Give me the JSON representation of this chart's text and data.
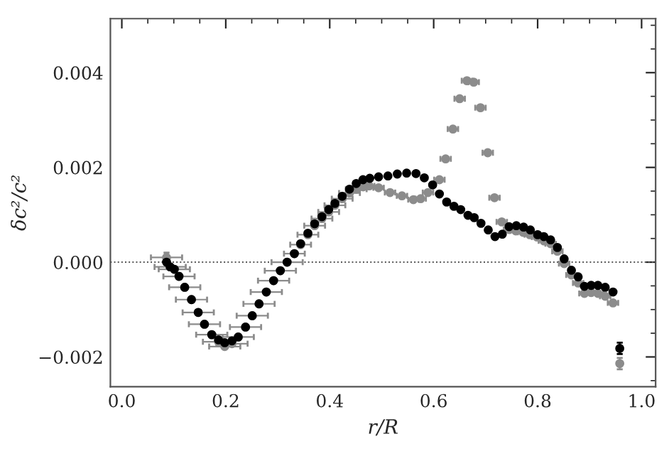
{
  "chart_data": {
    "type": "scatter",
    "xlabel": "r/R",
    "ylabel": "δc²/c²",
    "xlim": [
      -0.022,
      1.027
    ],
    "ylim": [
      -0.00263,
      0.00514
    ],
    "xticks": [
      {
        "value": 0.0,
        "label": "0.0"
      },
      {
        "value": 0.2,
        "label": "0.2"
      },
      {
        "value": 0.4,
        "label": "0.4"
      },
      {
        "value": 0.6,
        "label": "0.6"
      },
      {
        "value": 0.8,
        "label": "0.8"
      },
      {
        "value": 1.0,
        "label": "1.0"
      }
    ],
    "yticks": [
      {
        "value": -0.002,
        "label": "−0.002"
      },
      {
        "value": 0.0,
        "label": "0.000"
      },
      {
        "value": 0.002,
        "label": "0.002"
      },
      {
        "value": 0.004,
        "label": "0.004"
      }
    ],
    "marker": "circle",
    "grid": false,
    "legend": false,
    "ref_lines": [
      {
        "axis": "y",
        "value": 0.0,
        "color": "#555555",
        "line_style": "dotted"
      }
    ],
    "series": [
      {
        "color": "#8c8c8c",
        "x": [
          0.086,
          0.093,
          0.101,
          0.11,
          0.121,
          0.134,
          0.147,
          0.159,
          0.173,
          0.186,
          0.198,
          0.212,
          0.224,
          0.238,
          0.251,
          0.264,
          0.278,
          0.292,
          0.305,
          0.318,
          0.332,
          0.344,
          0.358,
          0.371,
          0.385,
          0.398,
          0.41,
          0.424,
          0.438,
          0.451,
          0.464,
          0.476,
          0.494,
          0.516,
          0.539,
          0.561,
          0.575,
          0.589,
          0.611,
          0.623,
          0.637,
          0.65,
          0.664,
          0.677,
          0.69,
          0.704,
          0.717,
          0.731,
          0.745,
          0.758,
          0.772,
          0.785,
          0.799,
          0.812,
          0.825,
          0.838,
          0.851,
          0.865,
          0.878,
          0.89,
          0.903,
          0.916,
          0.93,
          0.945,
          0.958
        ],
        "values": [
          0.0001,
          -0.0001,
          -0.00015,
          -0.0003,
          -0.00053,
          -0.00079,
          -0.00106,
          -0.00131,
          -0.00153,
          -0.00168,
          -0.00178,
          -0.00172,
          -0.00158,
          -0.00137,
          -0.00113,
          -0.00088,
          -0.00063,
          -0.00039,
          -0.00018,
          0.0,
          0.00018,
          0.00037,
          0.00058,
          0.00077,
          0.00092,
          0.00106,
          0.0012,
          0.00134,
          0.00146,
          0.00154,
          0.00159,
          0.00161,
          0.00157,
          0.00147,
          0.0014,
          0.00132,
          0.00134,
          0.00147,
          0.00174,
          0.00218,
          0.00281,
          0.00345,
          0.00383,
          0.0038,
          0.00326,
          0.00231,
          0.00136,
          0.00085,
          0.00069,
          0.00066,
          0.00063,
          0.00058,
          0.00053,
          0.00045,
          0.00039,
          0.00023,
          -3e-05,
          -0.00027,
          -0.00044,
          -0.00066,
          -0.00064,
          -0.00066,
          -0.00072,
          -0.00086,
          -0.00214
        ],
        "xerrors": [
          0.03,
          0.03,
          0.03,
          0.03,
          0.03,
          0.03,
          0.03,
          0.03,
          0.03,
          0.03,
          0.03,
          0.03,
          0.03,
          0.03,
          0.03,
          0.03,
          0.03,
          0.03,
          0.03,
          0.03,
          0.02,
          0.02,
          0.02,
          0.02,
          0.02,
          0.02,
          0.02,
          0.02,
          0.02,
          0.02,
          0.01,
          0.01,
          0.01,
          0.01,
          0.01,
          0.01,
          0.01,
          0.01,
          0.01,
          0.01,
          0.01,
          0.01,
          0.01,
          0.01,
          0.01,
          0.01,
          0.01,
          0.01,
          0.01,
          0.01,
          0.01,
          0.01,
          0.01,
          0.01,
          0.01,
          0.01,
          0.01,
          0.01,
          0.01,
          0.01,
          0.01,
          0.01,
          0.01,
          0.01,
          0.003
        ],
        "errors": [
          0.0001,
          null,
          null,
          null,
          null,
          null,
          null,
          null,
          null,
          null,
          null,
          null,
          null,
          null,
          null,
          null,
          null,
          null,
          null,
          null,
          null,
          null,
          null,
          null,
          null,
          null,
          null,
          null,
          null,
          null,
          null,
          null,
          null,
          null,
          null,
          null,
          null,
          null,
          null,
          null,
          null,
          null,
          null,
          null,
          null,
          null,
          null,
          null,
          null,
          null,
          null,
          null,
          null,
          null,
          null,
          null,
          null,
          null,
          null,
          null,
          null,
          null,
          null,
          null,
          0.00012
        ]
      },
      {
        "color": "#000000",
        "x": [
          0.086,
          0.093,
          0.101,
          0.11,
          0.121,
          0.134,
          0.147,
          0.159,
          0.173,
          0.186,
          0.198,
          0.212,
          0.224,
          0.238,
          0.251,
          0.264,
          0.278,
          0.292,
          0.305,
          0.318,
          0.332,
          0.344,
          0.358,
          0.371,
          0.385,
          0.398,
          0.41,
          0.424,
          0.438,
          0.451,
          0.464,
          0.477,
          0.494,
          0.512,
          0.53,
          0.548,
          0.566,
          0.582,
          0.598,
          0.611,
          0.625,
          0.639,
          0.652,
          0.666,
          0.678,
          0.691,
          0.705,
          0.718,
          0.732,
          0.745,
          0.759,
          0.773,
          0.786,
          0.8,
          0.812,
          0.825,
          0.838,
          0.851,
          0.865,
          0.878,
          0.89,
          0.903,
          0.916,
          0.93,
          0.945,
          0.958
        ],
        "values": [
          0.0,
          -0.0001,
          -0.00015,
          -0.0003,
          -0.00053,
          -0.00079,
          -0.00106,
          -0.00131,
          -0.00153,
          -0.00164,
          -0.0017,
          -0.00166,
          -0.00158,
          -0.00137,
          -0.00113,
          -0.00088,
          -0.00063,
          -0.00039,
          -0.00018,
          0.0,
          0.00018,
          0.00039,
          0.00061,
          0.00081,
          0.00096,
          0.00111,
          0.00124,
          0.00139,
          0.00154,
          0.00166,
          0.00174,
          0.00177,
          0.0018,
          0.00182,
          0.00186,
          0.00188,
          0.00187,
          0.00178,
          0.00163,
          0.00144,
          0.00127,
          0.00118,
          0.00111,
          0.00099,
          0.00094,
          0.00082,
          0.00068,
          0.00054,
          0.00059,
          0.00075,
          0.00077,
          0.00074,
          0.00068,
          0.00058,
          0.00054,
          0.00047,
          0.00031,
          7e-05,
          -0.00017,
          -0.00031,
          -0.00051,
          -0.00049,
          -0.00049,
          -0.00053,
          -0.00063,
          -0.00182
        ],
        "errors": [
          null,
          null,
          null,
          null,
          null,
          null,
          null,
          null,
          null,
          null,
          null,
          null,
          null,
          null,
          null,
          null,
          null,
          null,
          null,
          null,
          null,
          null,
          null,
          null,
          null,
          null,
          null,
          null,
          null,
          null,
          null,
          null,
          null,
          null,
          null,
          null,
          null,
          null,
          null,
          null,
          null,
          null,
          null,
          null,
          null,
          null,
          null,
          null,
          null,
          null,
          null,
          null,
          null,
          null,
          null,
          null,
          null,
          null,
          null,
          null,
          null,
          null,
          null,
          null,
          null,
          0.00012
        ]
      }
    ]
  }
}
